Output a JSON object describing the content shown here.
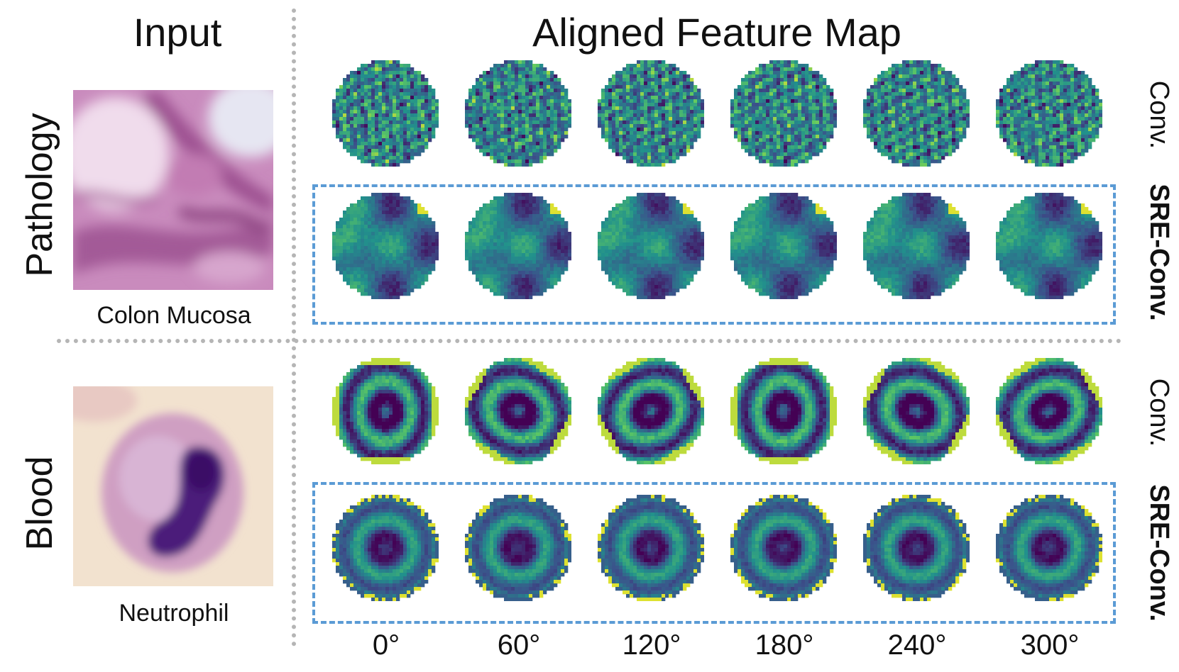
{
  "headers": {
    "input": "Input",
    "aligned": "Aligned Feature Map"
  },
  "rows": [
    {
      "domain_label": "Pathology",
      "input_caption": "Colon Mucosa",
      "conv_label": "Conv.",
      "sre_label": "SRE-Conv."
    },
    {
      "domain_label": "Blood",
      "input_caption": "Neutrophil",
      "conv_label": "Conv.",
      "sre_label": "SRE-Conv."
    }
  ],
  "angles": [
    "0°",
    "60°",
    "120°",
    "180°",
    "240°",
    "300°"
  ],
  "colors": {
    "divider": "#b5b5b5",
    "dash_box": "#5b9bd5",
    "viridis_dark": "#440154",
    "viridis_mid": "#21908d",
    "viridis_bright": "#fde725",
    "tissue_pink": "#c987b8",
    "cell_purple": "#4b1a7a"
  }
}
